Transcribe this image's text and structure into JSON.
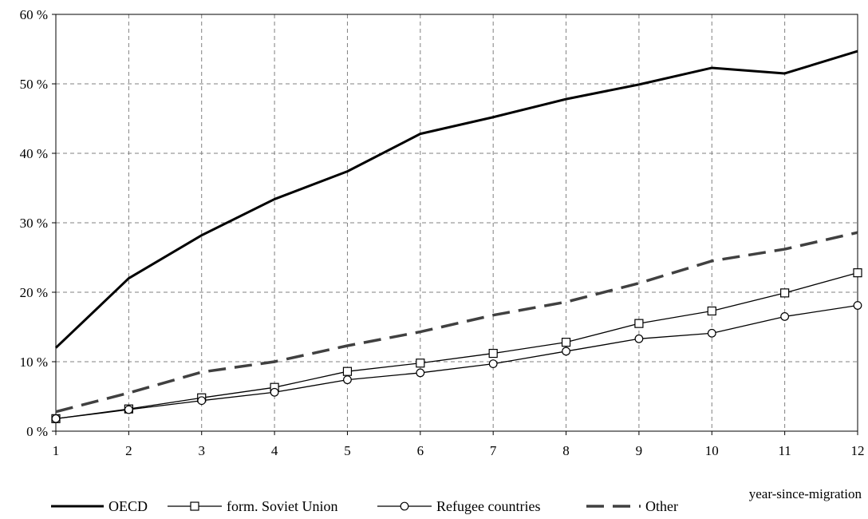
{
  "chart_data": {
    "type": "line",
    "title": "",
    "xlabel": "year-since-migration",
    "ylabel": "",
    "x": [
      1,
      2,
      3,
      4,
      5,
      6,
      7,
      8,
      9,
      10,
      11,
      12
    ],
    "xlim": [
      1,
      12
    ],
    "ylim": [
      0,
      60
    ],
    "yticks": [
      0,
      10,
      20,
      30,
      40,
      50,
      60
    ],
    "ytick_labels": [
      "0 %",
      "10 %",
      "20 %",
      "30 %",
      "40 %",
      "50 %",
      "60 %"
    ],
    "xtick_labels": [
      "1",
      "2",
      "3",
      "4",
      "5",
      "6",
      "7",
      "8",
      "9",
      "10",
      "11",
      "12"
    ],
    "grid": true,
    "legend_position": "bottom",
    "series": [
      {
        "name": "OECD",
        "values": [
          12.0,
          22.0,
          28.2,
          33.4,
          37.4,
          42.8,
          45.2,
          47.8,
          49.9,
          52.3,
          51.5,
          54.7
        ],
        "style": "solid-thick",
        "color": "#000000"
      },
      {
        "name": "form. Soviet Union",
        "values": [
          1.8,
          3.2,
          4.8,
          6.3,
          8.6,
          9.8,
          11.2,
          12.8,
          15.5,
          17.3,
          19.9,
          22.8
        ],
        "style": "solid-square",
        "color": "#000000"
      },
      {
        "name": "Refugee countries",
        "values": [
          1.8,
          3.1,
          4.4,
          5.6,
          7.4,
          8.4,
          9.7,
          11.5,
          13.3,
          14.1,
          16.5,
          18.1
        ],
        "style": "solid-circle",
        "color": "#000000"
      },
      {
        "name": "Other",
        "values": [
          2.8,
          5.5,
          8.5,
          10.0,
          12.3,
          14.3,
          16.7,
          18.6,
          21.3,
          24.5,
          26.2,
          28.6
        ],
        "style": "dashed",
        "color": "#404040"
      }
    ]
  }
}
